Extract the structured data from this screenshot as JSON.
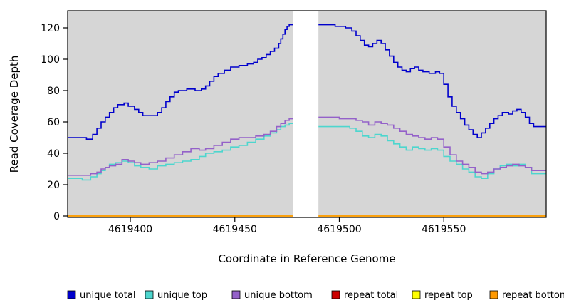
{
  "chart_data": {
    "type": "line",
    "step": true,
    "title": "",
    "xlabel": "Coordinate in Reference Genome",
    "ylabel": "Read Coverage Depth",
    "xlim": [
      4619370,
      4619599
    ],
    "ylim": [
      0,
      120
    ],
    "x_ticks": [
      4619400,
      4619450,
      4619500,
      4619550
    ],
    "y_ticks": [
      0,
      20,
      40,
      60,
      80,
      100,
      120
    ],
    "grid": false,
    "legend_position": "bottom",
    "panel_bg": "#d6d6d6",
    "gap_region": [
      4619478,
      4619490
    ],
    "series": [
      {
        "name": "unique total",
        "color": "#0000cc",
        "points": [
          [
            4619370,
            50
          ],
          [
            4619379,
            49
          ],
          [
            4619382,
            52
          ],
          [
            4619384,
            56
          ],
          [
            4619386,
            60
          ],
          [
            4619388,
            63
          ],
          [
            4619390,
            66
          ],
          [
            4619392,
            69
          ],
          [
            4619394,
            71
          ],
          [
            4619397,
            72
          ],
          [
            4619399,
            70
          ],
          [
            4619402,
            68
          ],
          [
            4619404,
            66
          ],
          [
            4619406,
            64
          ],
          [
            4619411,
            64
          ],
          [
            4619413,
            66
          ],
          [
            4619415,
            69
          ],
          [
            4619417,
            73
          ],
          [
            4619419,
            76
          ],
          [
            4619421,
            79
          ],
          [
            4619423,
            80
          ],
          [
            4619427,
            81
          ],
          [
            4619431,
            80
          ],
          [
            4619434,
            81
          ],
          [
            4619436,
            83
          ],
          [
            4619438,
            86
          ],
          [
            4619440,
            89
          ],
          [
            4619442,
            91
          ],
          [
            4619445,
            93
          ],
          [
            4619448,
            95
          ],
          [
            4619452,
            96
          ],
          [
            4619456,
            97
          ],
          [
            4619459,
            98
          ],
          [
            4619461,
            100
          ],
          [
            4619463,
            101
          ],
          [
            4619465,
            103
          ],
          [
            4619467,
            105
          ],
          [
            4619469,
            107
          ],
          [
            4619471,
            110
          ],
          [
            4619472,
            113
          ],
          [
            4619473,
            116
          ],
          [
            4619474,
            119
          ],
          [
            4619475,
            121
          ],
          [
            4619476,
            122
          ],
          [
            4619478,
            null
          ],
          [
            4619490,
            122
          ],
          [
            4619498,
            121
          ],
          [
            4619503,
            120
          ],
          [
            4619506,
            118
          ],
          [
            4619508,
            115
          ],
          [
            4619510,
            112
          ],
          [
            4619512,
            109
          ],
          [
            4619514,
            108
          ],
          [
            4619516,
            110
          ],
          [
            4619518,
            112
          ],
          [
            4619520,
            110
          ],
          [
            4619522,
            106
          ],
          [
            4619524,
            102
          ],
          [
            4619526,
            98
          ],
          [
            4619528,
            95
          ],
          [
            4619530,
            93
          ],
          [
            4619532,
            92
          ],
          [
            4619534,
            94
          ],
          [
            4619536,
            95
          ],
          [
            4619538,
            93
          ],
          [
            4619540,
            92
          ],
          [
            4619543,
            91
          ],
          [
            4619546,
            92
          ],
          [
            4619548,
            91
          ],
          [
            4619550,
            84
          ],
          [
            4619552,
            76
          ],
          [
            4619554,
            70
          ],
          [
            4619556,
            66
          ],
          [
            4619558,
            62
          ],
          [
            4619560,
            58
          ],
          [
            4619562,
            55
          ],
          [
            4619564,
            52
          ],
          [
            4619566,
            50
          ],
          [
            4619568,
            53
          ],
          [
            4619570,
            56
          ],
          [
            4619572,
            59
          ],
          [
            4619574,
            62
          ],
          [
            4619576,
            64
          ],
          [
            4619578,
            66
          ],
          [
            4619581,
            65
          ],
          [
            4619583,
            67
          ],
          [
            4619585,
            68
          ],
          [
            4619587,
            66
          ],
          [
            4619589,
            63
          ],
          [
            4619591,
            59
          ],
          [
            4619593,
            57
          ]
        ]
      },
      {
        "name": "unique top",
        "color": "#4dd6ce",
        "points": [
          [
            4619370,
            24
          ],
          [
            4619377,
            23
          ],
          [
            4619381,
            25
          ],
          [
            4619384,
            27
          ],
          [
            4619386,
            29
          ],
          [
            4619388,
            31
          ],
          [
            4619390,
            33
          ],
          [
            4619393,
            34
          ],
          [
            4619396,
            35
          ],
          [
            4619399,
            34
          ],
          [
            4619402,
            32
          ],
          [
            4619405,
            31
          ],
          [
            4619409,
            30
          ],
          [
            4619413,
            32
          ],
          [
            4619417,
            33
          ],
          [
            4619421,
            34
          ],
          [
            4619425,
            35
          ],
          [
            4619429,
            36
          ],
          [
            4619433,
            38
          ],
          [
            4619436,
            40
          ],
          [
            4619440,
            41
          ],
          [
            4619444,
            42
          ],
          [
            4619448,
            44
          ],
          [
            4619452,
            45
          ],
          [
            4619456,
            47
          ],
          [
            4619460,
            49
          ],
          [
            4619464,
            51
          ],
          [
            4619467,
            53
          ],
          [
            4619470,
            55
          ],
          [
            4619472,
            57
          ],
          [
            4619474,
            58
          ],
          [
            4619476,
            59
          ],
          [
            4619478,
            null
          ],
          [
            4619490,
            57
          ],
          [
            4619502,
            57
          ],
          [
            4619505,
            56
          ],
          [
            4619508,
            54
          ],
          [
            4619511,
            51
          ],
          [
            4619514,
            50
          ],
          [
            4619517,
            52
          ],
          [
            4619520,
            51
          ],
          [
            4619523,
            48
          ],
          [
            4619526,
            46
          ],
          [
            4619529,
            44
          ],
          [
            4619532,
            42
          ],
          [
            4619535,
            44
          ],
          [
            4619538,
            43
          ],
          [
            4619541,
            42
          ],
          [
            4619544,
            43
          ],
          [
            4619547,
            42
          ],
          [
            4619550,
            38
          ],
          [
            4619553,
            35
          ],
          [
            4619556,
            33
          ],
          [
            4619559,
            30
          ],
          [
            4619562,
            28
          ],
          [
            4619565,
            25
          ],
          [
            4619568,
            24
          ],
          [
            4619571,
            27
          ],
          [
            4619574,
            30
          ],
          [
            4619577,
            32
          ],
          [
            4619580,
            33
          ],
          [
            4619583,
            32
          ],
          [
            4619586,
            33
          ],
          [
            4619589,
            31
          ],
          [
            4619592,
            27
          ]
        ]
      },
      {
        "name": "unique bottom",
        "color": "#9461c9",
        "points": [
          [
            4619370,
            26
          ],
          [
            4619377,
            26
          ],
          [
            4619381,
            27
          ],
          [
            4619384,
            28
          ],
          [
            4619386,
            30
          ],
          [
            4619388,
            31
          ],
          [
            4619390,
            32
          ],
          [
            4619393,
            33
          ],
          [
            4619396,
            36
          ],
          [
            4619399,
            35
          ],
          [
            4619402,
            34
          ],
          [
            4619405,
            33
          ],
          [
            4619409,
            34
          ],
          [
            4619413,
            35
          ],
          [
            4619417,
            37
          ],
          [
            4619421,
            39
          ],
          [
            4619425,
            41
          ],
          [
            4619429,
            43
          ],
          [
            4619433,
            42
          ],
          [
            4619436,
            43
          ],
          [
            4619440,
            45
          ],
          [
            4619444,
            47
          ],
          [
            4619448,
            49
          ],
          [
            4619452,
            50
          ],
          [
            4619456,
            50
          ],
          [
            4619460,
            51
          ],
          [
            4619464,
            52
          ],
          [
            4619467,
            54
          ],
          [
            4619470,
            57
          ],
          [
            4619472,
            59
          ],
          [
            4619474,
            61
          ],
          [
            4619476,
            62
          ],
          [
            4619478,
            null
          ],
          [
            4619490,
            63
          ],
          [
            4619500,
            62
          ],
          [
            4619505,
            62
          ],
          [
            4619508,
            61
          ],
          [
            4619511,
            60
          ],
          [
            4619514,
            58
          ],
          [
            4619517,
            60
          ],
          [
            4619520,
            59
          ],
          [
            4619523,
            58
          ],
          [
            4619526,
            56
          ],
          [
            4619529,
            54
          ],
          [
            4619532,
            52
          ],
          [
            4619535,
            51
          ],
          [
            4619538,
            50
          ],
          [
            4619541,
            49
          ],
          [
            4619544,
            50
          ],
          [
            4619547,
            49
          ],
          [
            4619550,
            44
          ],
          [
            4619553,
            39
          ],
          [
            4619556,
            35
          ],
          [
            4619559,
            33
          ],
          [
            4619562,
            31
          ],
          [
            4619565,
            28
          ],
          [
            4619568,
            27
          ],
          [
            4619571,
            28
          ],
          [
            4619574,
            30
          ],
          [
            4619577,
            31
          ],
          [
            4619580,
            32
          ],
          [
            4619583,
            33
          ],
          [
            4619586,
            32
          ],
          [
            4619589,
            31
          ],
          [
            4619592,
            29
          ]
        ]
      },
      {
        "name": "repeat total",
        "color": "#cc0000",
        "points": [
          [
            4619370,
            0
          ],
          [
            4619599,
            0
          ]
        ]
      },
      {
        "name": "repeat top",
        "color": "#ffff00",
        "points": [
          [
            4619370,
            0
          ],
          [
            4619599,
            0
          ]
        ]
      },
      {
        "name": "repeat bottom",
        "color": "#ff9900",
        "points": [
          [
            4619370,
            0
          ],
          [
            4619599,
            0
          ]
        ]
      }
    ]
  }
}
